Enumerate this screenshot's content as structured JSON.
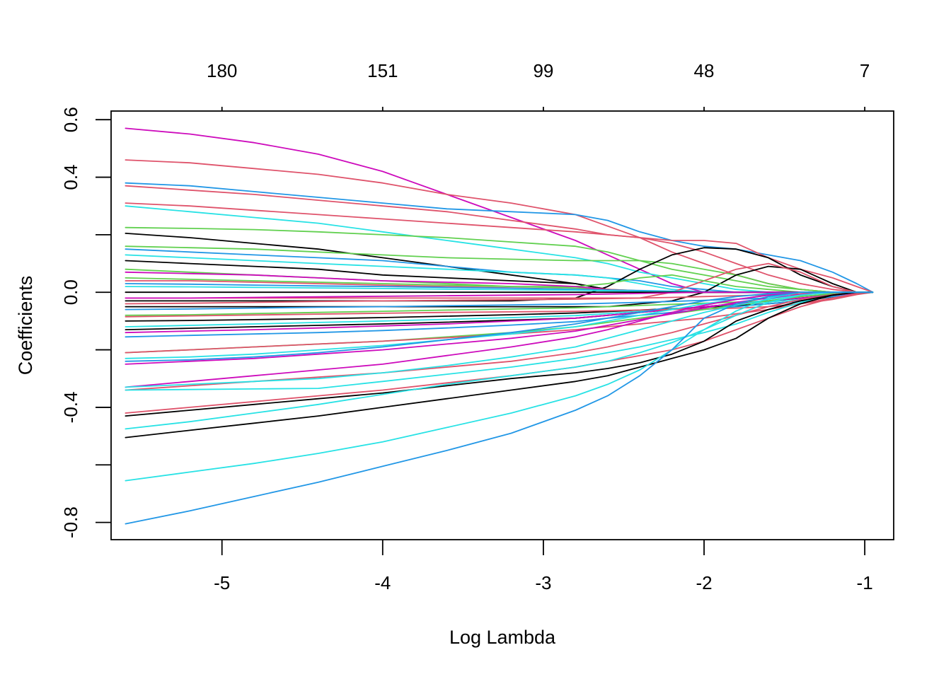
{
  "chart_data": {
    "type": "line",
    "title": "",
    "xlabel": "Log Lambda",
    "ylabel": "Coefficients",
    "xlim": [
      -5.69,
      -0.82
    ],
    "ylim": [
      -0.86,
      0.63
    ],
    "x_ticks": [
      -5,
      -4,
      -3,
      -2,
      -1
    ],
    "x_tick_labels": [
      "-5",
      "-4",
      "-3",
      "-2",
      "-1"
    ],
    "y_ticks": [
      -0.8,
      -0.6,
      -0.4,
      -0.2,
      0.0,
      0.2,
      0.4,
      0.6
    ],
    "y_tick_labels": [
      "-0.8",
      "",
      "-0.4",
      "",
      "0.0",
      "",
      "0.4",
      "0.6"
    ],
    "top_axis": {
      "label": "",
      "at": [
        -5,
        -4,
        -3,
        -2,
        -1
      ],
      "labels": [
        "180",
        "151",
        "99",
        "48",
        "7"
      ]
    },
    "grid": false,
    "legend": "none",
    "colors": [
      "#000000",
      "#DF536B",
      "#61D04F",
      "#2297E6",
      "#28E2E5",
      "#CD0BBC"
    ],
    "x": [
      -5.6,
      -5.2,
      -4.8,
      -4.4,
      -4.0,
      -3.6,
      -3.2,
      -2.8,
      -2.6,
      -2.4,
      -2.2,
      -2.0,
      -1.8,
      -1.6,
      -1.4,
      -1.2,
      -1.05,
      -0.95
    ],
    "series": [
      {
        "color": "#CD0BBC",
        "values": [
          0.57,
          0.55,
          0.52,
          0.48,
          0.42,
          0.34,
          0.26,
          0.18,
          0.13,
          0.08,
          0.03,
          0.0,
          0.0,
          0.0,
          0.0,
          0.0,
          0.0,
          0.0
        ]
      },
      {
        "color": "#DF536B",
        "values": [
          0.46,
          0.45,
          0.43,
          0.41,
          0.38,
          0.34,
          0.31,
          0.27,
          0.23,
          0.19,
          0.14,
          0.1,
          0.06,
          0.03,
          0.01,
          0.0,
          0.0,
          0.0
        ]
      },
      {
        "color": "#2297E6",
        "values": [
          0.38,
          0.37,
          0.35,
          0.33,
          0.31,
          0.29,
          0.28,
          0.27,
          0.25,
          0.21,
          0.18,
          0.16,
          0.15,
          0.13,
          0.11,
          0.07,
          0.03,
          0.0
        ]
      },
      {
        "color": "#DF536B",
        "values": [
          0.37,
          0.355,
          0.34,
          0.32,
          0.3,
          0.28,
          0.25,
          0.22,
          0.2,
          0.19,
          0.18,
          0.18,
          0.17,
          0.12,
          0.08,
          0.05,
          0.02,
          0.0
        ]
      },
      {
        "color": "#DF536B",
        "values": [
          0.31,
          0.3,
          0.285,
          0.27,
          0.255,
          0.24,
          0.225,
          0.21,
          0.2,
          0.19,
          0.17,
          0.14,
          0.1,
          0.06,
          0.03,
          0.01,
          0.0,
          0.0
        ]
      },
      {
        "color": "#28E2E5",
        "values": [
          0.3,
          0.28,
          0.26,
          0.24,
          0.21,
          0.18,
          0.15,
          0.12,
          0.1,
          0.07,
          0.05,
          0.03,
          0.01,
          0.0,
          0.0,
          0.0,
          0.0,
          0.0
        ]
      },
      {
        "color": "#61D04F",
        "values": [
          0.225,
          0.222,
          0.218,
          0.21,
          0.2,
          0.19,
          0.175,
          0.16,
          0.14,
          0.11,
          0.08,
          0.06,
          0.04,
          0.02,
          0.01,
          0.0,
          0.0,
          0.0
        ]
      },
      {
        "color": "#000000",
        "values": [
          0.205,
          0.19,
          0.17,
          0.15,
          0.12,
          0.09,
          0.06,
          0.03,
          0.01,
          0.0,
          0.0,
          0.0,
          0.0,
          0.0,
          0.0,
          0.0,
          0.0,
          0.0
        ]
      },
      {
        "color": "#61D04F",
        "values": [
          0.16,
          0.155,
          0.15,
          0.14,
          0.13,
          0.12,
          0.115,
          0.11,
          0.11,
          0.11,
          0.1,
          0.08,
          0.06,
          0.03,
          0.01,
          0.0,
          0.0,
          0.0
        ]
      },
      {
        "color": "#2297E6",
        "values": [
          0.15,
          0.14,
          0.13,
          0.12,
          0.11,
          0.09,
          0.07,
          0.06,
          0.05,
          0.04,
          0.02,
          0.01,
          0.0,
          0.0,
          0.0,
          0.0,
          0.0,
          0.0
        ]
      },
      {
        "color": "#28E2E5",
        "values": [
          0.13,
          0.12,
          0.11,
          0.1,
          0.09,
          0.08,
          0.07,
          0.06,
          0.05,
          0.03,
          0.01,
          0.0,
          0.0,
          0.0,
          0.0,
          0.0,
          0.0,
          0.0
        ]
      },
      {
        "color": "#000000",
        "values": [
          0.11,
          0.1,
          0.09,
          0.08,
          0.06,
          0.05,
          0.04,
          0.03,
          0.01,
          0.0,
          0.0,
          0.0,
          0.0,
          0.0,
          0.0,
          0.0,
          0.0,
          0.0
        ]
      },
      {
        "color": "#000000",
        "values": [
          -0.03,
          -0.03,
          -0.03,
          -0.03,
          -0.03,
          -0.03,
          -0.03,
          -0.02,
          0.02,
          0.08,
          0.13,
          0.155,
          0.15,
          0.12,
          0.06,
          0.02,
          0.0,
          0.0
        ]
      },
      {
        "color": "#000000",
        "values": [
          -0.05,
          -0.05,
          -0.05,
          -0.05,
          -0.05,
          -0.05,
          -0.05,
          -0.05,
          -0.05,
          -0.04,
          -0.03,
          0.0,
          0.06,
          0.09,
          0.08,
          0.03,
          0.0,
          0.0
        ]
      },
      {
        "color": "#DF536B",
        "values": [
          -0.02,
          -0.02,
          -0.02,
          -0.02,
          -0.02,
          -0.02,
          -0.02,
          -0.02,
          -0.02,
          -0.02,
          0.0,
          0.04,
          0.08,
          0.1,
          0.07,
          0.02,
          0.0,
          0.0
        ]
      },
      {
        "color": "#61D04F",
        "values": [
          0.08,
          0.07,
          0.06,
          0.05,
          0.04,
          0.03,
          0.02,
          0.02,
          0.03,
          0.05,
          0.06,
          0.04,
          0.02,
          0.01,
          0.0,
          0.0,
          0.0,
          0.0
        ]
      },
      {
        "color": "#61D04F",
        "values": [
          0.05,
          0.045,
          0.04,
          0.035,
          0.03,
          0.025,
          0.02,
          0.015,
          0.01,
          0.005,
          0.0,
          0.0,
          0.0,
          0.0,
          0.0,
          0.0,
          0.0,
          0.0
        ]
      },
      {
        "color": "#CD0BBC",
        "values": [
          0.07,
          0.065,
          0.06,
          0.05,
          0.04,
          0.035,
          0.03,
          0.02,
          0.01,
          0.0,
          0.0,
          0.0,
          0.0,
          0.0,
          0.0,
          0.0,
          0.0,
          0.0
        ]
      },
      {
        "color": "#DF536B",
        "values": [
          0.04,
          0.04,
          0.035,
          0.03,
          0.025,
          0.02,
          0.015,
          0.01,
          0.01,
          0.005,
          0.0,
          0.0,
          0.0,
          0.0,
          0.0,
          0.0,
          0.0,
          0.0
        ]
      },
      {
        "color": "#2297E6",
        "values": [
          0.03,
          0.028,
          0.025,
          0.022,
          0.02,
          0.017,
          0.014,
          0.01,
          0.008,
          0.006,
          0.004,
          0.002,
          0.0,
          0.0,
          0.0,
          0.0,
          0.0,
          0.0
        ]
      },
      {
        "color": "#28E2E5",
        "values": [
          0.02,
          0.019,
          0.017,
          0.015,
          0.013,
          0.011,
          0.009,
          0.007,
          0.005,
          0.003,
          0.002,
          0.0,
          0.0,
          0.0,
          0.0,
          0.0,
          0.0,
          0.0
        ]
      },
      {
        "color": "#000000",
        "values": [
          0.0,
          0.0,
          0.0,
          0.0,
          0.0,
          0.0,
          0.0,
          0.0,
          0.0,
          0.0,
          0.0,
          0.0,
          0.0,
          0.0,
          0.0,
          0.0,
          0.0,
          0.0
        ]
      },
      {
        "color": "#CD0BBC",
        "values": [
          -0.02,
          -0.02,
          -0.018,
          -0.016,
          -0.014,
          -0.012,
          -0.01,
          -0.008,
          -0.006,
          -0.004,
          -0.002,
          0.0,
          0.0,
          0.0,
          0.0,
          0.0,
          0.0,
          0.0
        ]
      },
      {
        "color": "#DF536B",
        "values": [
          -0.04,
          -0.038,
          -0.035,
          -0.032,
          -0.03,
          -0.028,
          -0.026,
          -0.024,
          -0.022,
          -0.02,
          -0.018,
          -0.015,
          -0.012,
          -0.009,
          -0.006,
          -0.003,
          -0.001,
          0.0
        ]
      },
      {
        "color": "#2297E6",
        "values": [
          -0.06,
          -0.058,
          -0.055,
          -0.052,
          -0.05,
          -0.047,
          -0.044,
          -0.041,
          -0.038,
          -0.035,
          -0.032,
          -0.028,
          -0.024,
          -0.02,
          -0.014,
          -0.008,
          -0.003,
          0.0
        ]
      },
      {
        "color": "#61D04F",
        "values": [
          -0.08,
          -0.078,
          -0.074,
          -0.07,
          -0.066,
          -0.062,
          -0.058,
          -0.054,
          -0.05,
          -0.046,
          -0.042,
          -0.038,
          -0.034,
          -0.03,
          -0.022,
          -0.012,
          -0.004,
          0.0
        ]
      },
      {
        "color": "#000000",
        "values": [
          -0.1,
          -0.098,
          -0.095,
          -0.092,
          -0.088,
          -0.083,
          -0.078,
          -0.072,
          -0.067,
          -0.062,
          -0.057,
          -0.052,
          -0.047,
          -0.04,
          -0.03,
          -0.016,
          -0.005,
          0.0
        ]
      },
      {
        "color": "#28E2E5",
        "values": [
          -0.12,
          -0.115,
          -0.11,
          -0.105,
          -0.1,
          -0.094,
          -0.088,
          -0.081,
          -0.074,
          -0.066,
          -0.058,
          -0.05,
          -0.042,
          -0.034,
          -0.024,
          -0.012,
          -0.004,
          0.0
        ]
      },
      {
        "color": "#000000",
        "values": [
          -0.13,
          -0.125,
          -0.12,
          -0.115,
          -0.11,
          -0.104,
          -0.097,
          -0.09,
          -0.08,
          -0.07,
          -0.06,
          -0.05,
          -0.04,
          -0.03,
          -0.02,
          -0.01,
          -0.003,
          0.0
        ]
      },
      {
        "color": "#2297E6",
        "values": [
          -0.155,
          -0.15,
          -0.145,
          -0.14,
          -0.133,
          -0.124,
          -0.114,
          -0.102,
          -0.09,
          -0.08,
          -0.07,
          -0.06,
          -0.05,
          -0.04,
          -0.03,
          -0.015,
          -0.004,
          0.0
        ]
      },
      {
        "color": "#CD0BBC",
        "values": [
          -0.14,
          -0.135,
          -0.13,
          -0.124,
          -0.117,
          -0.11,
          -0.1,
          -0.09,
          -0.08,
          -0.07,
          -0.06,
          -0.05,
          -0.04,
          -0.03,
          -0.02,
          -0.01,
          -0.003,
          0.0
        ]
      },
      {
        "color": "#DF536B",
        "values": [
          -0.085,
          -0.082,
          -0.079,
          -0.076,
          -0.073,
          -0.07,
          -0.068,
          -0.066,
          -0.064,
          -0.062,
          -0.06,
          -0.058,
          -0.055,
          -0.05,
          -0.04,
          -0.025,
          -0.008,
          0.0
        ]
      },
      {
        "color": "#61D04F",
        "values": [
          -0.21,
          -0.2,
          -0.19,
          -0.18,
          -0.17,
          -0.155,
          -0.14,
          -0.12,
          -0.105,
          -0.09,
          -0.075,
          -0.06,
          -0.045,
          -0.03,
          -0.015,
          -0.005,
          0.0,
          0.0
        ]
      },
      {
        "color": "#DF536B",
        "values": [
          -0.21,
          -0.2,
          -0.19,
          -0.18,
          -0.17,
          -0.158,
          -0.145,
          -0.13,
          -0.12,
          -0.11,
          -0.1,
          -0.09,
          -0.075,
          -0.06,
          -0.04,
          -0.02,
          -0.005,
          0.0
        ]
      },
      {
        "color": "#28E2E5",
        "values": [
          -0.23,
          -0.225,
          -0.215,
          -0.2,
          -0.185,
          -0.165,
          -0.145,
          -0.12,
          -0.1,
          -0.08,
          -0.06,
          -0.04,
          -0.025,
          -0.01,
          0.0,
          0.0,
          0.0,
          0.0
        ]
      },
      {
        "color": "#2297E6",
        "values": [
          -0.24,
          -0.235,
          -0.225,
          -0.21,
          -0.19,
          -0.165,
          -0.14,
          -0.11,
          -0.09,
          -0.07,
          -0.05,
          -0.03,
          -0.015,
          -0.005,
          0.0,
          0.0,
          0.0,
          0.0
        ]
      },
      {
        "color": "#CD0BBC",
        "values": [
          -0.25,
          -0.24,
          -0.23,
          -0.215,
          -0.2,
          -0.18,
          -0.16,
          -0.135,
          -0.115,
          -0.095,
          -0.075,
          -0.055,
          -0.035,
          -0.02,
          -0.008,
          0.0,
          0.0,
          0.0
        ]
      },
      {
        "color": "#CD0BBC",
        "values": [
          -0.33,
          -0.31,
          -0.29,
          -0.27,
          -0.25,
          -0.22,
          -0.19,
          -0.155,
          -0.13,
          -0.1,
          -0.07,
          -0.045,
          -0.025,
          -0.01,
          0.0,
          0.0,
          0.0,
          0.0
        ]
      },
      {
        "color": "#DF536B",
        "values": [
          -0.34,
          -0.325,
          -0.31,
          -0.295,
          -0.28,
          -0.26,
          -0.24,
          -0.21,
          -0.19,
          -0.165,
          -0.14,
          -0.11,
          -0.08,
          -0.05,
          -0.025,
          -0.008,
          0.0,
          0.0
        ]
      },
      {
        "color": "#28E2E5",
        "values": [
          -0.33,
          -0.32,
          -0.31,
          -0.3,
          -0.28,
          -0.255,
          -0.225,
          -0.19,
          -0.16,
          -0.13,
          -0.1,
          -0.07,
          -0.045,
          -0.025,
          -0.01,
          0.0,
          0.0,
          0.0
        ]
      },
      {
        "color": "#28E2E5",
        "values": [
          -0.34,
          -0.338,
          -0.336,
          -0.334,
          -0.31,
          -0.285,
          -0.26,
          -0.23,
          -0.21,
          -0.19,
          -0.165,
          -0.14,
          -0.11,
          -0.07,
          -0.035,
          -0.01,
          0.0,
          0.0
        ]
      },
      {
        "color": "#DF536B",
        "values": [
          -0.42,
          -0.4,
          -0.38,
          -0.36,
          -0.34,
          -0.315,
          -0.29,
          -0.26,
          -0.24,
          -0.22,
          -0.2,
          -0.17,
          -0.13,
          -0.09,
          -0.05,
          -0.02,
          -0.005,
          0.0
        ]
      },
      {
        "color": "#000000",
        "values": [
          -0.43,
          -0.41,
          -0.39,
          -0.37,
          -0.35,
          -0.325,
          -0.3,
          -0.28,
          -0.265,
          -0.245,
          -0.215,
          -0.17,
          -0.1,
          -0.06,
          -0.03,
          -0.01,
          0.0,
          0.0
        ]
      },
      {
        "color": "#28E2E5",
        "values": [
          -0.475,
          -0.45,
          -0.42,
          -0.39,
          -0.355,
          -0.32,
          -0.29,
          -0.26,
          -0.24,
          -0.21,
          -0.175,
          -0.13,
          -0.08,
          -0.035,
          -0.01,
          0.0,
          0.0,
          0.0
        ]
      },
      {
        "color": "#000000",
        "values": [
          -0.505,
          -0.48,
          -0.455,
          -0.43,
          -0.4,
          -0.37,
          -0.34,
          -0.31,
          -0.29,
          -0.26,
          -0.23,
          -0.2,
          -0.16,
          -0.09,
          -0.04,
          -0.01,
          0.0,
          0.0
        ]
      },
      {
        "color": "#28E2E5",
        "values": [
          -0.655,
          -0.625,
          -0.595,
          -0.56,
          -0.52,
          -0.47,
          -0.42,
          -0.36,
          -0.32,
          -0.27,
          -0.2,
          -0.13,
          -0.065,
          -0.02,
          0.0,
          0.0,
          0.0,
          0.0
        ]
      },
      {
        "color": "#2297E6",
        "values": [
          -0.805,
          -0.76,
          -0.71,
          -0.66,
          -0.605,
          -0.55,
          -0.49,
          -0.41,
          -0.36,
          -0.29,
          -0.2,
          -0.09,
          -0.04,
          -0.015,
          0.0,
          0.0,
          0.0,
          0.0
        ]
      }
    ]
  }
}
